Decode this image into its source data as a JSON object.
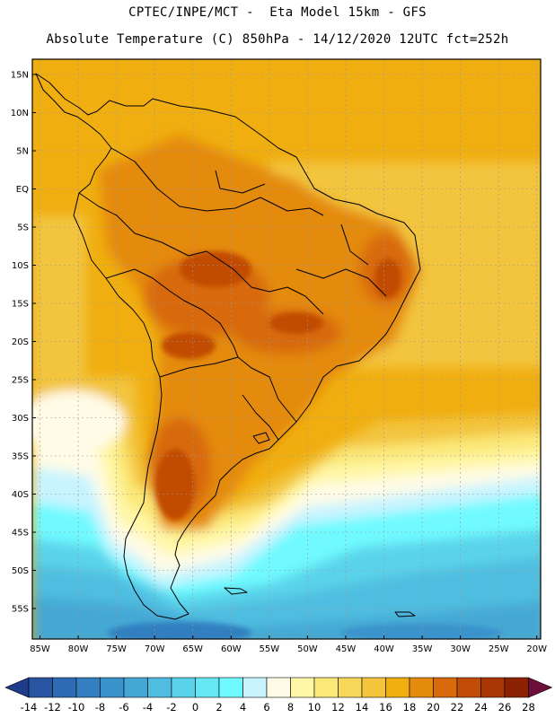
{
  "header": {
    "line1": "CPTEC/INPE/MCT -  Eta Model 15km - GFS",
    "line2": "Absolute Temperature (C) 850hPa - 14/12/2020 12UTC fct=252h"
  },
  "map": {
    "lat_labels": [
      "15N",
      "10N",
      "5N",
      "EQ",
      "5S",
      "10S",
      "15S",
      "20S",
      "25S",
      "30S",
      "35S",
      "40S",
      "45S",
      "50S",
      "55S"
    ],
    "lon_labels": [
      "85W",
      "80W",
      "75W",
      "70W",
      "65W",
      "60W",
      "55W",
      "50W",
      "45W",
      "40W",
      "35W",
      "30W",
      "25W",
      "20W"
    ]
  },
  "colorbar": {
    "labels": [
      "-14",
      "-12",
      "-10",
      "-8",
      "-6",
      "-4",
      "-2",
      "0",
      "2",
      "4",
      "6",
      "8",
      "10",
      "12",
      "14",
      "16",
      "18",
      "20",
      "22",
      "24",
      "26",
      "28"
    ],
    "colors": [
      "#1f3c8c",
      "#2a55a3",
      "#2e6bb4",
      "#337fc0",
      "#3a93cb",
      "#44a8d4",
      "#50bde0",
      "#5ad3ea",
      "#66e8f4",
      "#6ffaff",
      "#c8f4ff",
      "#fffbe6",
      "#fff7a8",
      "#fbe878",
      "#f7d858",
      "#f3c43c",
      "#f0ae10",
      "#e48a0c",
      "#d86a0a",
      "#c14c06",
      "#a83604",
      "#8c2202",
      "#7a1a14",
      "#6e0e3a"
    ]
  }
}
